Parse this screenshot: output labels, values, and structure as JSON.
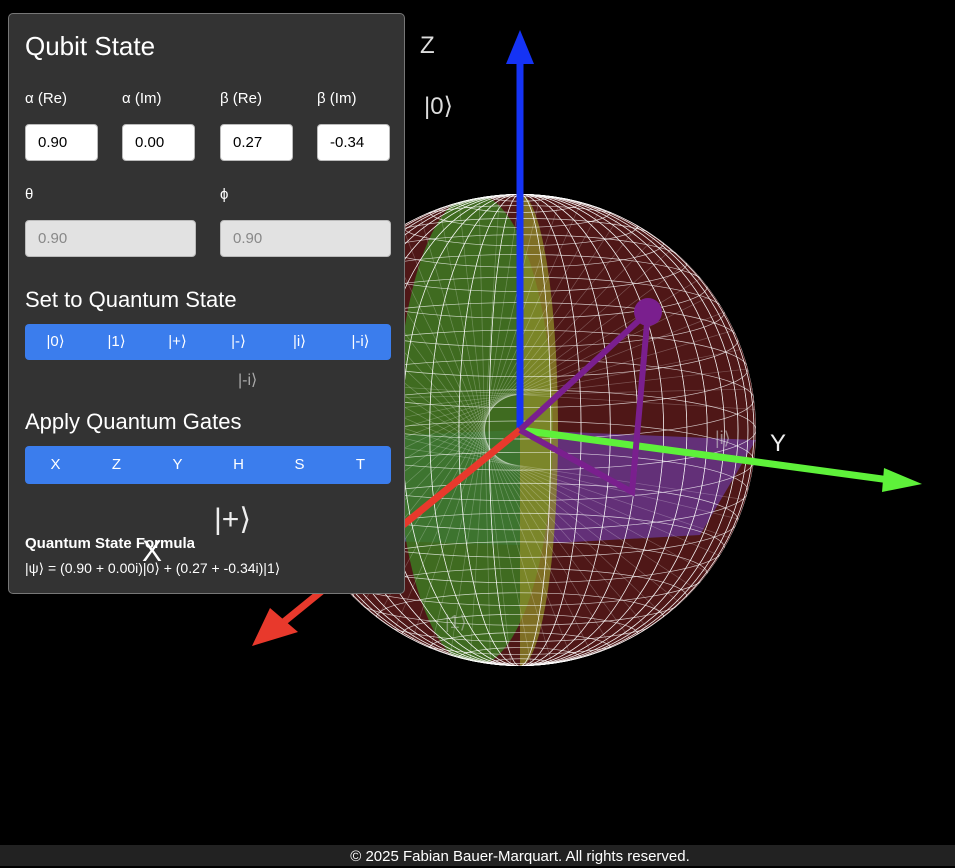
{
  "panel": {
    "title": "Qubit State",
    "amplitudes": [
      {
        "label": "α (Re)",
        "value": "0.90"
      },
      {
        "label": "α (Im)",
        "value": "0.00"
      },
      {
        "label": "β (Re)",
        "value": "0.27"
      },
      {
        "label": "β (Im)",
        "value": "-0.34"
      }
    ],
    "angles": [
      {
        "label": "θ",
        "value": "0.90"
      },
      {
        "label": "ϕ",
        "value": "0.90"
      }
    ],
    "states_title": "Set to Quantum State",
    "states": [
      "|0⟩",
      "|1⟩",
      "|+⟩",
      "|-⟩",
      "|i⟩",
      "|-i⟩"
    ],
    "gates_title": "Apply Quantum Gates",
    "gates": [
      "X",
      "Z",
      "Y",
      "H",
      "S",
      "T"
    ],
    "formula_title": "Quantum State Formula",
    "formula": "|ψ⟩ = (0.90 + 0.00i)|0⟩ + (0.27 + -0.34i)|1⟩"
  },
  "scene": {
    "axis_labels": {
      "z": "Z",
      "y": "Y",
      "x": "X"
    },
    "state_labels": {
      "zero": "|0⟩",
      "one": "|1⟩",
      "plus": "|+⟩",
      "minus_i": "|-i⟩",
      "i": "|i⟩"
    }
  },
  "footer": "© 2025 Fabian Bauer-Marquart. All rights reserved."
}
